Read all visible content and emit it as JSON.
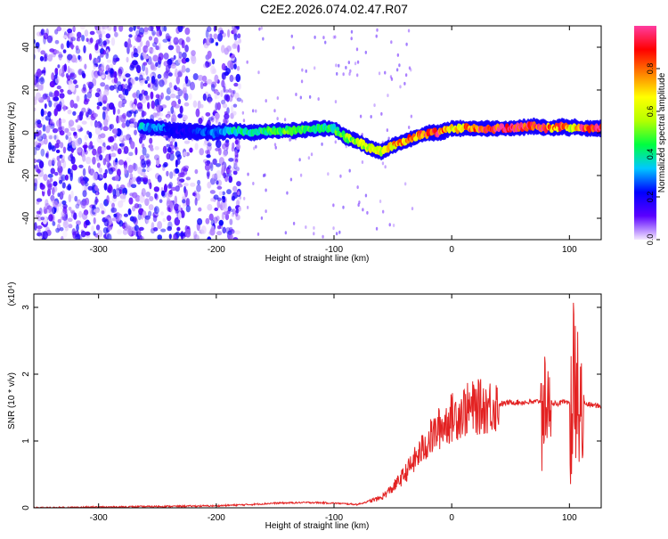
{
  "figure_title": "C2E2.2026.074.02.47.R07",
  "colors": {
    "snr_line": "#e32222",
    "spectrogram_low": "#5a1fe6",
    "frame": "#000000"
  },
  "chart_data": [
    {
      "type": "heatmap",
      "title": "C2E2.2026.074.02.47.R07",
      "xlabel": "Height of straight line (km)",
      "ylabel": "Frequency (Hz)",
      "xlim": [
        -355,
        127
      ],
      "ylim": [
        -50,
        50
      ],
      "xticks": [
        -300,
        -200,
        -100,
        0,
        100
      ],
      "yticks": [
        -40,
        -20,
        0,
        20,
        40
      ],
      "xtick_labels": [
        "-300",
        "-200",
        "-100",
        "0",
        "100"
      ],
      "ytick_labels": [
        "-40",
        "-20",
        "0",
        "20",
        "40"
      ],
      "colorbar": {
        "label": "Normalized spectral amplitude",
        "range": [
          0,
          1
        ],
        "ticks": [
          "0.0",
          "0.2",
          "0.4",
          "0.6",
          "0.8"
        ],
        "tick_values": [
          0.0,
          0.2,
          0.4,
          0.6,
          0.8
        ],
        "colormap": [
          "#f5e8ff",
          "#5a00ff",
          "#0000ff",
          "#00c8ff",
          "#00ff40",
          "#b4ff00",
          "#ffff00",
          "#ff8000",
          "#ff0000",
          "#ff3ca0"
        ]
      },
      "ridge": {
        "x": [
          -265,
          -245,
          -235,
          -200,
          -185,
          -170,
          -150,
          -130,
          -115,
          -100,
          -90,
          -80,
          -70,
          -60,
          -50,
          -40,
          -30,
          -20,
          -10,
          0,
          20,
          50,
          70,
          85,
          95,
          100,
          103,
          110,
          127
        ],
        "freq": [
          3,
          2,
          1,
          0,
          1,
          0,
          1,
          1,
          2,
          2,
          -2,
          -4,
          -7,
          -9,
          -6,
          -4,
          -2,
          0,
          0,
          2,
          2,
          2,
          3,
          2,
          3,
          2,
          3,
          2,
          2
        ],
        "amplitude": [
          0.35,
          0.3,
          0.2,
          0.3,
          0.4,
          0.45,
          0.5,
          0.5,
          0.45,
          0.45,
          0.55,
          0.6,
          0.65,
          0.7,
          0.75,
          0.8,
          0.85,
          0.9,
          0.95,
          0.7,
          0.9,
          1.0,
          1.0,
          0.85,
          0.9,
          0.7,
          0.6,
          0.95,
          1.0
        ]
      },
      "noise_region_x": [
        -355,
        -180
      ]
    },
    {
      "type": "line",
      "xlabel": "Height of straight line (km)",
      "ylabel": "SNR (10 * v/v)",
      "y_multiplier": "(x10⁴)",
      "xlim": [
        -355,
        127
      ],
      "ylim": [
        0,
        3.2
      ],
      "xticks": [
        -300,
        -200,
        -100,
        0,
        100
      ],
      "yticks": [
        0,
        1,
        2,
        3
      ],
      "xtick_labels": [
        "-300",
        "-200",
        "-100",
        "0",
        "100"
      ],
      "ytick_labels": [
        "0",
        "1",
        "2",
        "3"
      ],
      "series": [
        {
          "x": [
            -355,
            -300,
            -250,
            -200,
            -170,
            -150,
            -120,
            -100,
            -80,
            -60,
            -50,
            -40,
            -30,
            -20,
            -10,
            0,
            10,
            20,
            30,
            40,
            50,
            60,
            70,
            75,
            80,
            85,
            90,
            95,
            100,
            103,
            105,
            108,
            110,
            115,
            127
          ],
          "values": [
            0.0,
            0.01,
            0.02,
            0.03,
            0.05,
            0.07,
            0.08,
            0.07,
            0.05,
            0.15,
            0.3,
            0.5,
            0.75,
            1.0,
            1.2,
            1.35,
            1.45,
            1.5,
            1.52,
            1.55,
            1.58,
            1.58,
            1.58,
            1.6,
            1.6,
            1.58,
            1.56,
            1.58,
            1.55,
            1.6,
            1.55,
            1.55,
            1.55,
            1.55,
            1.52
          ],
          "spikes": [
            {
              "x": 78,
              "min": 0.35,
              "max": 2.3
            },
            {
              "x": 82,
              "min": 1.0,
              "max": 2.2
            },
            {
              "x": 103,
              "min": 0.12,
              "max": 3.1
            },
            {
              "x": 106,
              "min": 0.1,
              "max": 2.9
            },
            {
              "x": 110,
              "min": 0.6,
              "max": 2.2
            }
          ]
        }
      ]
    }
  ]
}
